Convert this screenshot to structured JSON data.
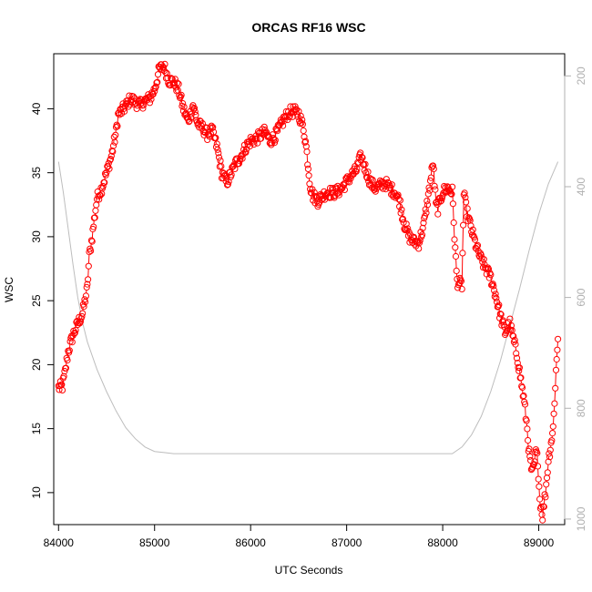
{
  "chart_data": {
    "type": "scatter",
    "title": "ORCAS RF16 WSC",
    "xlabel": "UTC Seconds",
    "ylabel": "WSC",
    "xlim": [
      83950,
      89270
    ],
    "ylim": [
      7.5,
      44.3
    ],
    "x_ticks": [
      84000,
      85000,
      86000,
      87000,
      88000,
      89000
    ],
    "y_ticks": [
      10,
      15,
      20,
      25,
      30,
      35,
      40
    ],
    "right_axis": {
      "label": "",
      "range": [
        160,
        1010
      ],
      "reversed": true,
      "ticks": [
        200,
        400,
        600,
        800,
        1000
      ],
      "color": "#bdbdbd"
    },
    "series": [
      {
        "style": "points-with-lines",
        "color": "#ff0000",
        "anchors": [
          [
            84000,
            18.2
          ],
          [
            84040,
            18.3
          ],
          [
            84070,
            19.5
          ],
          [
            84100,
            21.0
          ],
          [
            84150,
            22.3
          ],
          [
            84200,
            23.2
          ],
          [
            84250,
            24.0
          ],
          [
            84300,
            26.0
          ],
          [
            84320,
            28.5
          ],
          [
            84350,
            30.0
          ],
          [
            84400,
            33.0
          ],
          [
            84450,
            33.8
          ],
          [
            84500,
            35.0
          ],
          [
            84550,
            36.3
          ],
          [
            84600,
            38.2
          ],
          [
            84620,
            39.5
          ],
          [
            84700,
            40.2
          ],
          [
            84750,
            40.8
          ],
          [
            84800,
            40.5
          ],
          [
            84850,
            40.3
          ],
          [
            84900,
            40.6
          ],
          [
            84950,
            40.8
          ],
          [
            85000,
            41.5
          ],
          [
            85050,
            43.1
          ],
          [
            85100,
            43.3
          ],
          [
            85150,
            42.2
          ],
          [
            85200,
            42.1
          ],
          [
            85250,
            41.5
          ],
          [
            85300,
            40.0
          ],
          [
            85350,
            39.0
          ],
          [
            85400,
            40.3
          ],
          [
            85450,
            38.8
          ],
          [
            85500,
            38.5
          ],
          [
            85550,
            38.0
          ],
          [
            85600,
            38.3
          ],
          [
            85650,
            37.0
          ],
          [
            85700,
            35.0
          ],
          [
            85750,
            34.2
          ],
          [
            85800,
            35.0
          ],
          [
            85850,
            35.8
          ],
          [
            85900,
            36.3
          ],
          [
            85950,
            37.0
          ],
          [
            86000,
            37.5
          ],
          [
            86050,
            37.6
          ],
          [
            86100,
            37.9
          ],
          [
            86150,
            38.2
          ],
          [
            86200,
            37.5
          ],
          [
            86250,
            37.8
          ],
          [
            86300,
            38.5
          ],
          [
            86350,
            39.2
          ],
          [
            86400,
            39.7
          ],
          [
            86450,
            39.8
          ],
          [
            86500,
            39.6
          ],
          [
            86550,
            38.5
          ],
          [
            86580,
            37.0
          ],
          [
            86600,
            35.5
          ],
          [
            86620,
            34.0
          ],
          [
            86650,
            33.2
          ],
          [
            86700,
            32.8
          ],
          [
            86750,
            33.2
          ],
          [
            86800,
            33.5
          ],
          [
            86850,
            33.4
          ],
          [
            86900,
            33.5
          ],
          [
            86950,
            33.8
          ],
          [
            87000,
            34.3
          ],
          [
            87050,
            34.8
          ],
          [
            87100,
            35.2
          ],
          [
            87150,
            36.3
          ],
          [
            87200,
            35.2
          ],
          [
            87250,
            34.2
          ],
          [
            87300,
            33.8
          ],
          [
            87350,
            34.0
          ],
          [
            87400,
            34.2
          ],
          [
            87450,
            33.8
          ],
          [
            87500,
            33.5
          ],
          [
            87550,
            32.8
          ],
          [
            87600,
            31.0
          ],
          [
            87650,
            30.0
          ],
          [
            87700,
            29.6
          ],
          [
            87750,
            29.5
          ],
          [
            87800,
            30.8
          ],
          [
            87850,
            33.2
          ],
          [
            87900,
            35.8
          ],
          [
            87930,
            32.5
          ],
          [
            87950,
            32.2
          ],
          [
            88000,
            33.5
          ],
          [
            88050,
            33.8
          ],
          [
            88100,
            33.5
          ],
          [
            88130,
            29.0
          ],
          [
            88150,
            26.5
          ],
          [
            88200,
            26.2
          ],
          [
            88220,
            33.3
          ],
          [
            88250,
            32.0
          ],
          [
            88300,
            30.5
          ],
          [
            88350,
            29.2
          ],
          [
            88400,
            28.2
          ],
          [
            88450,
            27.5
          ],
          [
            88500,
            26.8
          ],
          [
            88550,
            25.5
          ],
          [
            88600,
            23.8
          ],
          [
            88650,
            22.5
          ],
          [
            88700,
            23.2
          ],
          [
            88750,
            21.5
          ],
          [
            88780,
            20.5
          ],
          [
            88800,
            19.5
          ],
          [
            88850,
            17.0
          ],
          [
            88880,
            15.0
          ],
          [
            88900,
            13.0
          ],
          [
            88930,
            11.5
          ],
          [
            88950,
            12.0
          ],
          [
            88970,
            13.2
          ],
          [
            88990,
            12.5
          ],
          [
            89010,
            9.5
          ],
          [
            89040,
            8.2
          ],
          [
            89070,
            10.0
          ],
          [
            89100,
            12.5
          ],
          [
            89150,
            15.0
          ],
          [
            89180,
            19.5
          ],
          [
            89200,
            22.0
          ]
        ]
      },
      {
        "style": "line",
        "color": "#bdbdbd",
        "axis": "right",
        "values": [
          [
            84000,
            355
          ],
          [
            84050,
            410
          ],
          [
            84100,
            475
          ],
          [
            84150,
            540
          ],
          [
            84200,
            600
          ],
          [
            84250,
            645
          ],
          [
            84300,
            680
          ],
          [
            84400,
            730
          ],
          [
            84500,
            770
          ],
          [
            84600,
            805
          ],
          [
            84700,
            835
          ],
          [
            84800,
            855
          ],
          [
            84900,
            870
          ],
          [
            85000,
            878
          ],
          [
            85100,
            880
          ],
          [
            85200,
            882
          ],
          [
            86000,
            882
          ],
          [
            87000,
            882
          ],
          [
            88000,
            882
          ],
          [
            88100,
            882
          ],
          [
            88200,
            870
          ],
          [
            88300,
            848
          ],
          [
            88400,
            815
          ],
          [
            88500,
            770
          ],
          [
            88600,
            715
          ],
          [
            88700,
            650
          ],
          [
            88800,
            585
          ],
          [
            88900,
            515
          ],
          [
            89000,
            450
          ],
          [
            89100,
            395
          ],
          [
            89200,
            355
          ]
        ]
      }
    ]
  }
}
